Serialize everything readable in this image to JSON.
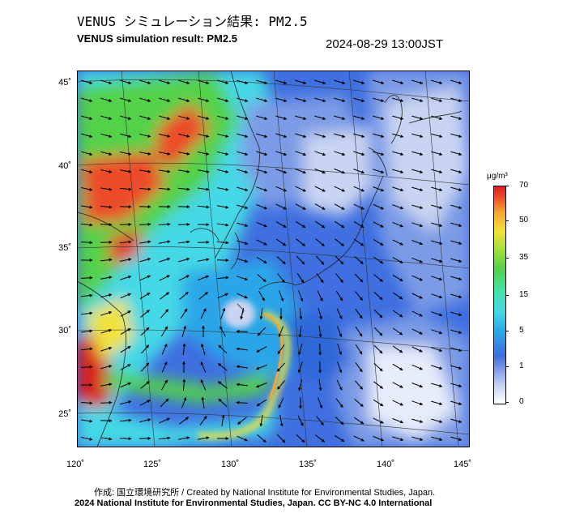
{
  "header": {
    "title_jp": "VENUS シミュレーション結果: PM2.5",
    "title_en": "VENUS simulation result: PM2.5",
    "timestamp": "2024-08-29 13:00JST"
  },
  "map": {
    "lat_labels": [
      "45˚",
      "40˚",
      "35˚",
      "30˚",
      "25˚"
    ],
    "lon_labels": [
      "120˚",
      "125˚",
      "130˚",
      "135˚",
      "140˚",
      "145˚"
    ],
    "lat_range": [
      23,
      46
    ],
    "lon_range": [
      120,
      145
    ],
    "field": "PM2.5 concentration with surface wind vectors",
    "colors": {
      "ocean_base": "#3f6fe0",
      "clean_air": "#ffffff",
      "low": "#7c9be6",
      "mid_low": "#2aa6e8",
      "mid": "#44d8e6",
      "mid_high": "#52d24a",
      "high": "#f2e23a",
      "very_high": "#d81f1f"
    }
  },
  "colorbar": {
    "unit": "μg/m³",
    "ticks": [
      "70",
      "50",
      "35",
      "15",
      "5",
      "1",
      "0"
    ],
    "tick_values": [
      70,
      50,
      35,
      15,
      5,
      1,
      0
    ]
  },
  "footer": {
    "credit_line1": "作成: 国立環境研究所 / Created by National Institute for Environmental Studies, Japan.",
    "credit_line2": "2024 National Institute for Environmental Studies, Japan. CC BY-NC 4.0 International"
  }
}
